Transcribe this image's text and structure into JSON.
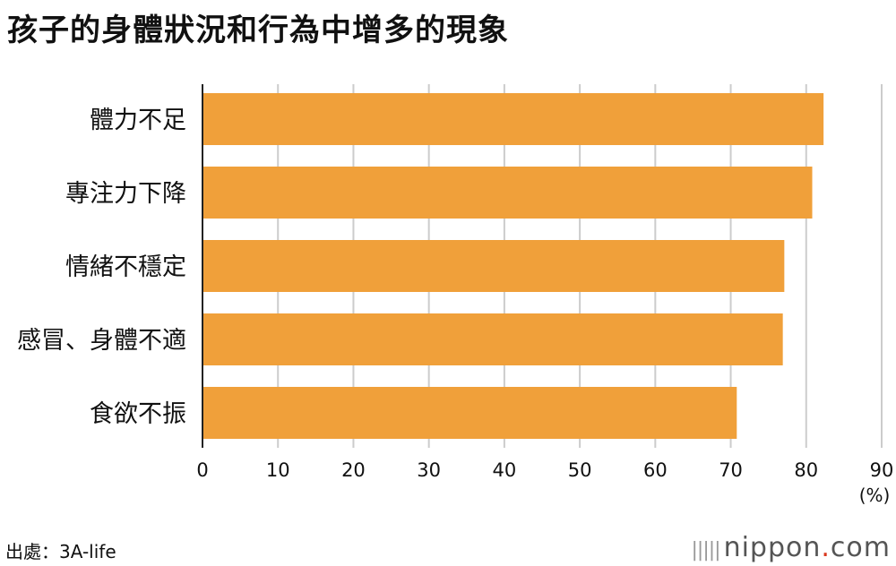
{
  "title": "孩子的身體狀況和行為中增多的現象",
  "source": "出處：3A-life",
  "brand": {
    "name": "nippon",
    "dot": ".",
    "tld": "com"
  },
  "chart_data": {
    "type": "bar",
    "orientation": "horizontal",
    "categories": [
      "體力不足",
      "專注力下降",
      "情緒不穩定",
      "感冒、身體不適",
      "食欲不振"
    ],
    "values": [
      82.3,
      80.8,
      77.1,
      76.9,
      70.8
    ],
    "unit_label": "(%)",
    "xlim": [
      0,
      90
    ],
    "xticks": [
      0,
      10,
      20,
      30,
      40,
      50,
      60,
      70,
      80,
      90
    ],
    "grid": true,
    "bar_color": "#f0a03a"
  }
}
